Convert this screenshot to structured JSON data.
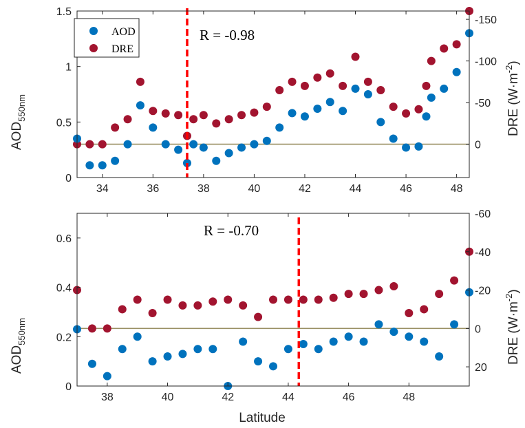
{
  "colors": {
    "aod": "#0072BD",
    "dre": "#A2142F",
    "zero_line": "#9A9064",
    "vline": "#FF0000",
    "axis": "#262626"
  },
  "chart_data": [
    {
      "type": "scatter",
      "title": "",
      "xlabel": "",
      "ylabel_left": {
        "main": "AOD",
        "sub": "550nm"
      },
      "ylabel_right": {
        "main": "DRE (W·m",
        "sup": "-2",
        "close": ")"
      },
      "xlim": [
        33.0,
        48.5
      ],
      "ylim_left": [
        0,
        1.5
      ],
      "ylim_right": [
        40,
        -160
      ],
      "xticks": [
        "34",
        "36",
        "38",
        "40",
        "42",
        "44",
        "46",
        "48"
      ],
      "yticks_left": [
        "0",
        "0.5",
        "1",
        "1.5"
      ],
      "yticks_right": [
        "-150",
        "-100",
        "-50",
        "0"
      ],
      "legend": {
        "position": "top-left",
        "entries": [
          "AOD",
          "DRE"
        ]
      },
      "annotation": "R = -0.98",
      "vline_x": 37.35,
      "zero_line_dre": 0,
      "aod": {
        "x": [
          33.0,
          33.5,
          34.0,
          34.5,
          35.0,
          35.5,
          36.0,
          36.5,
          37.0,
          37.35,
          37.6,
          38.0,
          38.5,
          39.0,
          39.5,
          40.0,
          40.5,
          41.0,
          41.5,
          42.0,
          42.5,
          43.0,
          43.5,
          44.0,
          44.5,
          45.0,
          45.5,
          46.0,
          46.5,
          46.8,
          47.0,
          47.5,
          48.0,
          48.5
        ],
        "y": [
          0.35,
          0.11,
          0.11,
          0.15,
          0.3,
          0.65,
          0.45,
          0.3,
          0.25,
          0.13,
          0.3,
          0.27,
          0.15,
          0.22,
          0.27,
          0.3,
          0.33,
          0.45,
          0.58,
          0.55,
          0.62,
          0.68,
          0.6,
          0.8,
          0.75,
          0.5,
          0.35,
          0.27,
          0.28,
          0.55,
          0.72,
          0.8,
          0.95,
          1.3
        ]
      },
      "dre": {
        "x": [
          33.0,
          33.5,
          34.0,
          34.5,
          35.0,
          35.5,
          36.0,
          36.5,
          37.0,
          37.35,
          37.6,
          38.0,
          38.5,
          39.0,
          39.5,
          40.0,
          40.5,
          41.0,
          41.5,
          42.0,
          42.5,
          43.0,
          43.5,
          44.0,
          44.5,
          45.0,
          45.5,
          46.0,
          46.5,
          46.8,
          47.0,
          47.5,
          48.0,
          48.5
        ],
        "y": [
          0,
          0,
          0,
          -20,
          -30,
          -75,
          -40,
          -37,
          -35,
          -10,
          -30,
          -35,
          -25,
          -30,
          -35,
          -38,
          -45,
          -65,
          -75,
          -70,
          -80,
          -85,
          -70,
          -105,
          -75,
          -65,
          -45,
          -37,
          -42,
          -70,
          -100,
          -115,
          -120,
          -160
        ]
      }
    },
    {
      "type": "scatter",
      "title": "",
      "xlabel": "Latitude",
      "ylabel_left": {
        "main": "AOD",
        "sub": "550nm"
      },
      "ylabel_right": {
        "main": "DRE (W·m",
        "sup": "-2",
        "close": ")"
      },
      "xlim": [
        37.0,
        50.0
      ],
      "ylim_left": [
        0,
        0.7
      ],
      "ylim_right": [
        30,
        -60
      ],
      "xticks": [
        "38",
        "40",
        "42",
        "44",
        "46",
        "48"
      ],
      "yticks_left": [
        "0",
        "0.2",
        "0.4",
        "0.6"
      ],
      "yticks_right": [
        "-60",
        "-40",
        "-20",
        "0",
        "20"
      ],
      "annotation": "R = -0.70",
      "vline_x": 44.35,
      "zero_line_dre": 0,
      "aod": {
        "x": [
          37.0,
          37.5,
          38.0,
          38.5,
          39.0,
          39.5,
          40.0,
          40.5,
          41.0,
          41.5,
          42.0,
          42.5,
          43.0,
          43.5,
          44.0,
          44.5,
          45.0,
          45.5,
          46.0,
          46.5,
          47.0,
          47.5,
          48.0,
          48.5,
          49.0,
          49.5,
          50.0
        ],
        "y": [
          0.23,
          0.09,
          0.04,
          0.15,
          0.2,
          0.1,
          0.12,
          0.13,
          0.15,
          0.15,
          0.0,
          0.18,
          0.1,
          0.08,
          0.15,
          0.17,
          0.15,
          0.18,
          0.2,
          0.18,
          0.25,
          0.22,
          0.2,
          0.18,
          0.12,
          0.25,
          0.38
        ]
      },
      "dre": {
        "x": [
          37.0,
          37.5,
          38.0,
          38.5,
          39.0,
          39.5,
          40.0,
          40.5,
          41.0,
          41.5,
          42.0,
          42.5,
          43.0,
          43.5,
          44.0,
          44.5,
          45.0,
          45.5,
          46.0,
          46.5,
          47.0,
          47.5,
          48.0,
          48.5,
          49.0,
          49.5,
          50.0
        ],
        "y": [
          -20,
          0,
          0,
          -10,
          -15,
          -8,
          -15,
          -12,
          -12,
          -14,
          -15,
          -12,
          -6,
          -15,
          -15,
          -15,
          -15,
          -16,
          -18,
          -18,
          -20,
          -22,
          -8,
          -10,
          -18,
          -25,
          -40
        ]
      }
    }
  ]
}
